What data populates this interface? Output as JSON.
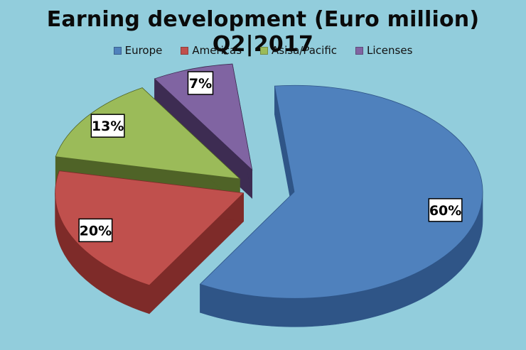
{
  "chart_data": {
    "type": "pie",
    "title": "Earning development (Euro million) Q2|2017",
    "slices": [
      {
        "name": "Europe",
        "value": 60,
        "label": "60%",
        "color": "#4f81bd",
        "side_color": "#2f5587"
      },
      {
        "name": "Americas",
        "value": 20,
        "label": "20%",
        "color": "#c0504d",
        "side_color": "#7e2b29"
      },
      {
        "name": "Asisa/Pacific",
        "value": 13,
        "label": "13%",
        "color": "#9bbb59",
        "side_color": "#4f6327"
      },
      {
        "name": "Licenses",
        "value": 7,
        "label": "7%",
        "color": "#8064a2",
        "side_color": "#3d2c52"
      }
    ],
    "legend_position": "top-center",
    "exploded": true,
    "three_d": true
  },
  "background_color": "#92cddc"
}
